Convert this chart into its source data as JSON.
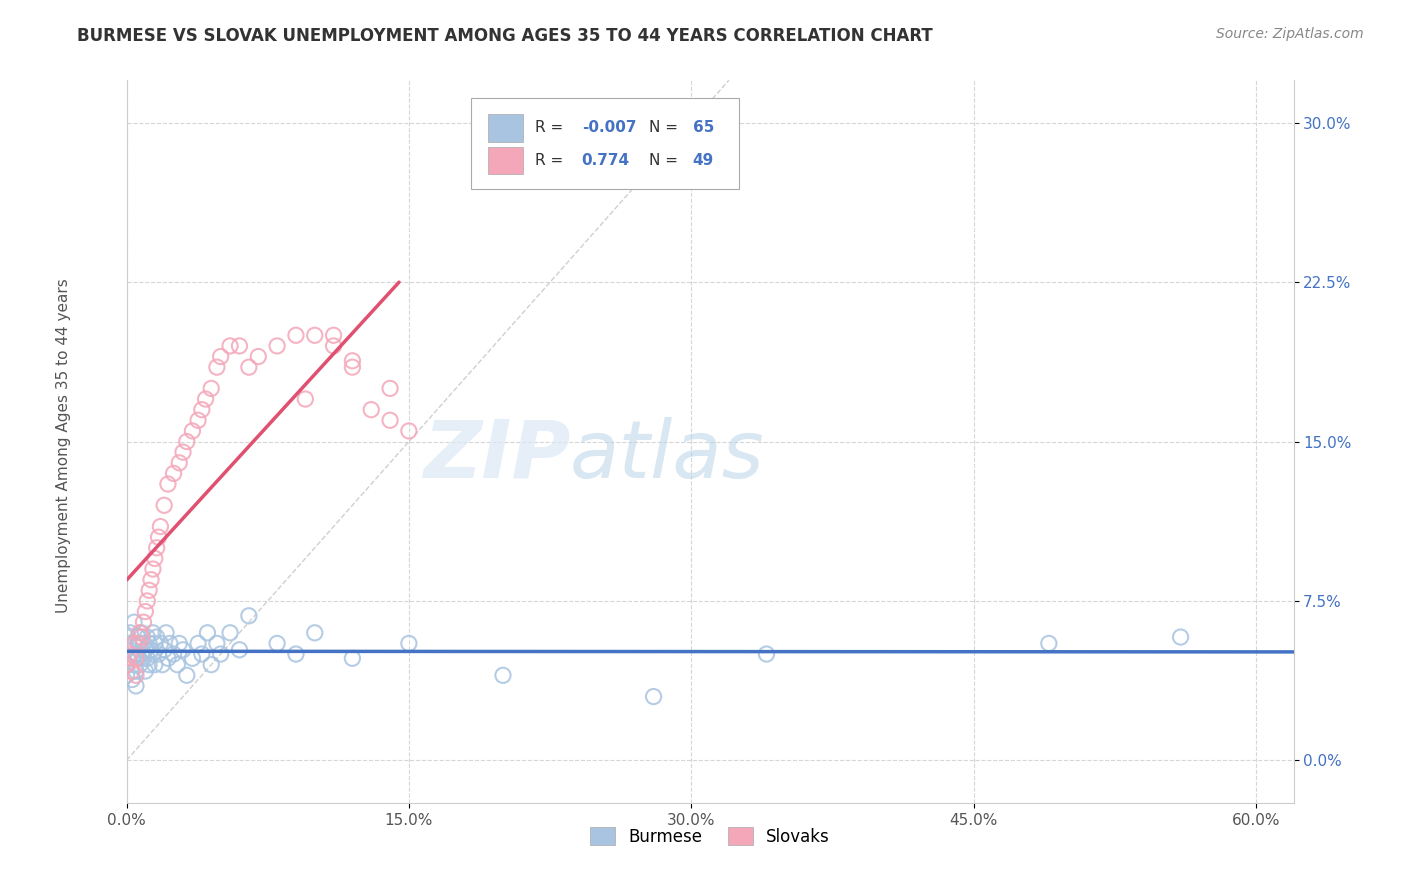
{
  "title": "BURMESE VS SLOVAK UNEMPLOYMENT AMONG AGES 35 TO 44 YEARS CORRELATION CHART",
  "source": "Source: ZipAtlas.com",
  "ylabel": "Unemployment Among Ages 35 to 44 years",
  "xlim": [
    0.0,
    0.62
  ],
  "ylim": [
    -0.02,
    0.32
  ],
  "xticks": [
    0.0,
    0.15,
    0.3,
    0.45,
    0.6
  ],
  "xticklabels": [
    "0.0%",
    "15.0%",
    "30.0%",
    "45.0%",
    "60.0%"
  ],
  "yticks": [
    0.0,
    0.075,
    0.15,
    0.225,
    0.3
  ],
  "yticklabels": [
    "0.0%",
    "7.5%",
    "15.0%",
    "22.5%",
    "30.0%"
  ],
  "burmese_color": "#a8c4e0",
  "burmese_line_color": "#4472c4",
  "slovak_color": "#f4a7b9",
  "slovak_line_color": "#e05070",
  "burmese_R": -0.007,
  "burmese_N": 65,
  "slovak_R": 0.774,
  "slovak_N": 49,
  "background_color": "#ffffff",
  "grid_color": "#cccccc",
  "tick_color_y": "#4472c4",
  "tick_color_x": "#555555",
  "legend_text_color": "#333333",
  "legend_val_color": "#4472c4",
  "burmese_x": [
    0.0,
    0.0,
    0.0,
    0.0,
    0.001,
    0.002,
    0.003,
    0.003,
    0.004,
    0.004,
    0.005,
    0.005,
    0.005,
    0.006,
    0.006,
    0.007,
    0.007,
    0.008,
    0.008,
    0.009,
    0.009,
    0.01,
    0.01,
    0.011,
    0.011,
    0.012,
    0.012,
    0.013,
    0.014,
    0.014,
    0.015,
    0.015,
    0.016,
    0.017,
    0.018,
    0.019,
    0.02,
    0.021,
    0.022,
    0.023,
    0.025,
    0.027,
    0.028,
    0.03,
    0.032,
    0.035,
    0.038,
    0.04,
    0.043,
    0.045,
    0.048,
    0.05,
    0.055,
    0.06,
    0.065,
    0.08,
    0.09,
    0.1,
    0.12,
    0.15,
    0.2,
    0.28,
    0.34,
    0.49,
    0.56
  ],
  "burmese_y": [
    0.058,
    0.052,
    0.045,
    0.04,
    0.055,
    0.06,
    0.048,
    0.038,
    0.055,
    0.065,
    0.05,
    0.042,
    0.035,
    0.058,
    0.048,
    0.055,
    0.045,
    0.06,
    0.05,
    0.055,
    0.048,
    0.052,
    0.042,
    0.058,
    0.048,
    0.055,
    0.045,
    0.052,
    0.06,
    0.05,
    0.055,
    0.045,
    0.058,
    0.05,
    0.055,
    0.045,
    0.052,
    0.06,
    0.048,
    0.055,
    0.05,
    0.045,
    0.055,
    0.052,
    0.04,
    0.048,
    0.055,
    0.05,
    0.06,
    0.045,
    0.055,
    0.05,
    0.06,
    0.052,
    0.068,
    0.055,
    0.05,
    0.06,
    0.048,
    0.055,
    0.04,
    0.03,
    0.05,
    0.055,
    0.058
  ],
  "slovak_x": [
    0.0,
    0.001,
    0.002,
    0.003,
    0.004,
    0.005,
    0.005,
    0.006,
    0.007,
    0.008,
    0.009,
    0.01,
    0.011,
    0.012,
    0.013,
    0.014,
    0.015,
    0.016,
    0.017,
    0.018,
    0.02,
    0.022,
    0.025,
    0.028,
    0.03,
    0.032,
    0.035,
    0.038,
    0.04,
    0.042,
    0.045,
    0.048,
    0.05,
    0.055,
    0.06,
    0.065,
    0.07,
    0.08,
    0.09,
    0.1,
    0.11,
    0.12,
    0.13,
    0.14,
    0.15,
    0.14,
    0.12,
    0.11,
    0.095
  ],
  "slovak_y": [
    0.045,
    0.048,
    0.05,
    0.042,
    0.055,
    0.048,
    0.04,
    0.055,
    0.06,
    0.058,
    0.065,
    0.07,
    0.075,
    0.08,
    0.085,
    0.09,
    0.095,
    0.1,
    0.105,
    0.11,
    0.12,
    0.13,
    0.135,
    0.14,
    0.145,
    0.15,
    0.155,
    0.16,
    0.165,
    0.17,
    0.175,
    0.185,
    0.19,
    0.195,
    0.195,
    0.185,
    0.19,
    0.195,
    0.2,
    0.2,
    0.2,
    0.185,
    0.165,
    0.16,
    0.155,
    0.175,
    0.188,
    0.195,
    0.17
  ]
}
